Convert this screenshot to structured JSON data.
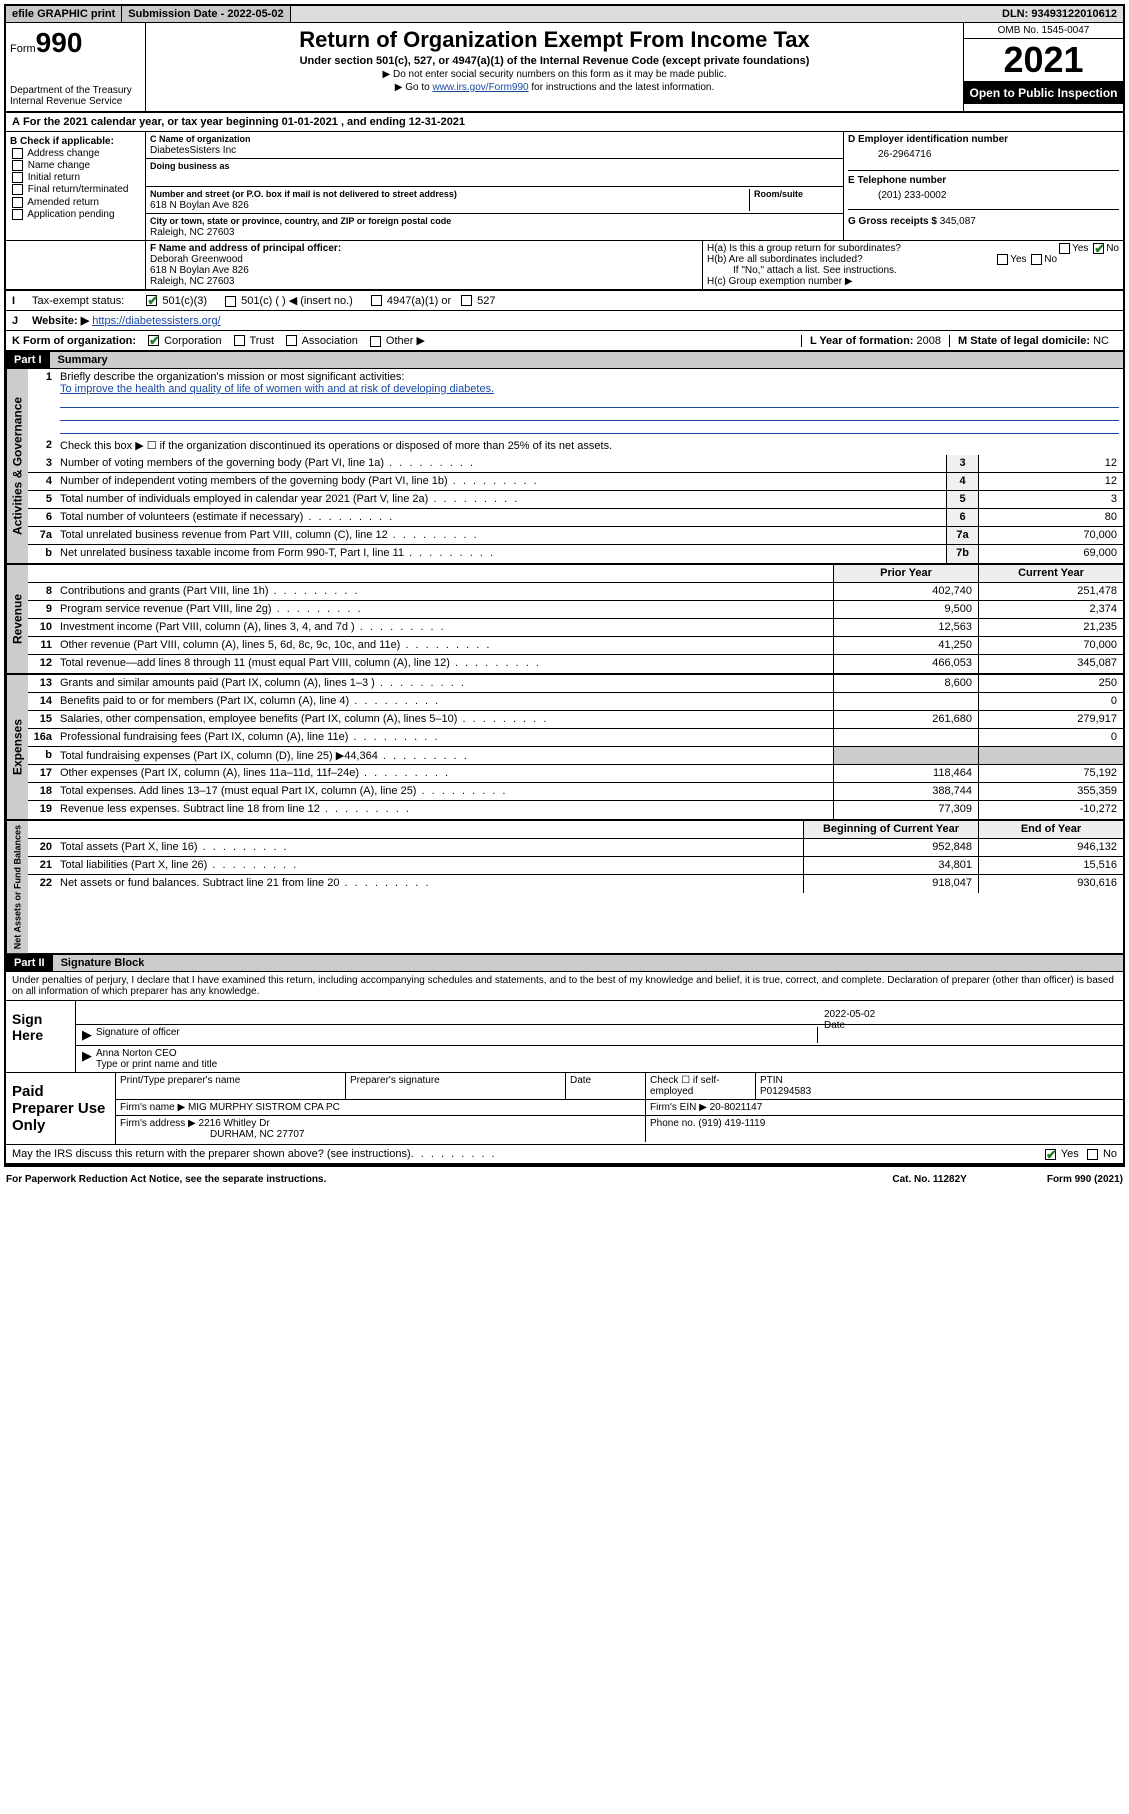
{
  "topbar": {
    "efile": "efile GRAPHIC print",
    "submission_label": "Submission Date - 2022-05-02",
    "dln": "DLN: 93493122010612"
  },
  "header": {
    "form_prefix": "Form",
    "form_number": "990",
    "dept": "Department of the Treasury\nInternal Revenue Service",
    "title": "Return of Organization Exempt From Income Tax",
    "subtitle": "Under section 501(c), 527, or 4947(a)(1) of the Internal Revenue Code (except private foundations)",
    "note1": "▶ Do not enter social security numbers on this form as it may be made public.",
    "note2_pre": "▶ Go to ",
    "note2_link": "www.irs.gov/Form990",
    "note2_post": " for instructions and the latest information.",
    "omb": "OMB No. 1545-0047",
    "year": "2021",
    "inspect": "Open to Public Inspection"
  },
  "taxyear": "For the 2021 calendar year, or tax year beginning 01-01-2021   , and ending 12-31-2021",
  "blockB": {
    "label": "B Check if applicable:",
    "opts": [
      "Address change",
      "Name change",
      "Initial return",
      "Final return/terminated",
      "Amended return",
      "Application pending"
    ]
  },
  "blockC": {
    "name_lbl": "C Name of organization",
    "name": "DiabetesSisters Inc",
    "dba_lbl": "Doing business as",
    "dba": "",
    "addr_lbl": "Number and street (or P.O. box if mail is not delivered to street address)",
    "room_lbl": "Room/suite",
    "addr": "618 N Boylan Ave 826",
    "city_lbl": "City or town, state or province, country, and ZIP or foreign postal code",
    "city": "Raleigh, NC  27603"
  },
  "blockD": {
    "lbl": "D Employer identification number",
    "val": "26-2964716"
  },
  "blockE": {
    "lbl": "E Telephone number",
    "val": "(201) 233-0002"
  },
  "blockG": {
    "lbl": "G Gross receipts $",
    "val": "345,087"
  },
  "blockF": {
    "lbl": "F  Name and address of principal officer:",
    "name": "Deborah Greenwood",
    "addr1": "618 N Boylan Ave 826",
    "addr2": "Raleigh, NC  27603"
  },
  "blockH": {
    "a": "H(a)  Is this a group return for subordinates?",
    "b": "H(b)  Are all subordinates included?",
    "note": "If \"No,\" attach a list. See instructions.",
    "c": "H(c)  Group exemption number ▶"
  },
  "rowI": {
    "lbl": "Tax-exempt status:",
    "opts": [
      "501(c)(3)",
      "501(c) (  ) ◀ (insert no.)",
      "4947(a)(1) or",
      "527"
    ]
  },
  "rowJ": {
    "lbl": "Website: ▶",
    "val": "https://diabetessisters.org/"
  },
  "rowK": {
    "lbl": "K Form of organization:",
    "opts": [
      "Corporation",
      "Trust",
      "Association",
      "Other ▶"
    ]
  },
  "rowL": {
    "lbl": "L Year of formation:",
    "val": "2008"
  },
  "rowM": {
    "lbl": "M State of legal domicile:",
    "val": "NC"
  },
  "part1": {
    "hdr": "Part I",
    "title": "Summary"
  },
  "summary": {
    "l1_lbl": "Briefly describe the organization's mission or most significant activities:",
    "l1_val": "To improve the health and quality of life of women with and at risk of developing diabetes.",
    "l2": "Check this box ▶ ☐  if the organization discontinued its operations or disposed of more than 25% of its net assets.",
    "rows_ag": [
      {
        "n": "3",
        "t": "Number of voting members of the governing body (Part VI, line 1a)",
        "b": "3",
        "v": "12"
      },
      {
        "n": "4",
        "t": "Number of independent voting members of the governing body (Part VI, line 1b)",
        "b": "4",
        "v": "12"
      },
      {
        "n": "5",
        "t": "Total number of individuals employed in calendar year 2021 (Part V, line 2a)",
        "b": "5",
        "v": "3"
      },
      {
        "n": "6",
        "t": "Total number of volunteers (estimate if necessary)",
        "b": "6",
        "v": "80"
      },
      {
        "n": "7a",
        "t": "Total unrelated business revenue from Part VIII, column (C), line 12",
        "b": "7a",
        "v": "70,000"
      },
      {
        "n": "b",
        "t": "Net unrelated business taxable income from Form 990-T, Part I, line 11",
        "b": "7b",
        "v": "69,000"
      }
    ],
    "col_hdr_prior": "Prior Year",
    "col_hdr_curr": "Current Year",
    "rev": [
      {
        "n": "8",
        "t": "Contributions and grants (Part VIII, line 1h)",
        "p": "402,740",
        "c": "251,478"
      },
      {
        "n": "9",
        "t": "Program service revenue (Part VIII, line 2g)",
        "p": "9,500",
        "c": "2,374"
      },
      {
        "n": "10",
        "t": "Investment income (Part VIII, column (A), lines 3, 4, and 7d )",
        "p": "12,563",
        "c": "21,235"
      },
      {
        "n": "11",
        "t": "Other revenue (Part VIII, column (A), lines 5, 6d, 8c, 9c, 10c, and 11e)",
        "p": "41,250",
        "c": "70,000"
      },
      {
        "n": "12",
        "t": "Total revenue—add lines 8 through 11 (must equal Part VIII, column (A), line 12)",
        "p": "466,053",
        "c": "345,087"
      }
    ],
    "exp": [
      {
        "n": "13",
        "t": "Grants and similar amounts paid (Part IX, column (A), lines 1–3 )",
        "p": "8,600",
        "c": "250"
      },
      {
        "n": "14",
        "t": "Benefits paid to or for members (Part IX, column (A), line 4)",
        "p": "",
        "c": "0"
      },
      {
        "n": "15",
        "t": "Salaries, other compensation, employee benefits (Part IX, column (A), lines 5–10)",
        "p": "261,680",
        "c": "279,917"
      },
      {
        "n": "16a",
        "t": "Professional fundraising fees (Part IX, column (A), line 11e)",
        "p": "",
        "c": "0"
      },
      {
        "n": "b",
        "t": "Total fundraising expenses (Part IX, column (D), line 25) ▶44,364",
        "p": "shade",
        "c": "shade"
      },
      {
        "n": "17",
        "t": "Other expenses (Part IX, column (A), lines 11a–11d, 11f–24e)",
        "p": "118,464",
        "c": "75,192"
      },
      {
        "n": "18",
        "t": "Total expenses. Add lines 13–17 (must equal Part IX, column (A), line 25)",
        "p": "388,744",
        "c": "355,359"
      },
      {
        "n": "19",
        "t": "Revenue less expenses. Subtract line 18 from line 12",
        "p": "77,309",
        "c": "-10,272"
      }
    ],
    "na_hdr_beg": "Beginning of Current Year",
    "na_hdr_end": "End of Year",
    "na": [
      {
        "n": "20",
        "t": "Total assets (Part X, line 16)",
        "p": "952,848",
        "c": "946,132"
      },
      {
        "n": "21",
        "t": "Total liabilities (Part X, line 26)",
        "p": "34,801",
        "c": "15,516"
      },
      {
        "n": "22",
        "t": "Net assets or fund balances. Subtract line 21 from line 20",
        "p": "918,047",
        "c": "930,616"
      }
    ]
  },
  "vtabs": {
    "ag": "Activities & Governance",
    "rev": "Revenue",
    "exp": "Expenses",
    "na": "Net Assets or Fund Balances"
  },
  "part2": {
    "hdr": "Part II",
    "title": "Signature Block"
  },
  "sig": {
    "pen": "Under penalties of perjury, I declare that I have examined this return, including accompanying schedules and statements, and to the best of my knowledge and belief, it is true, correct, and complete. Declaration of preparer (other than officer) is based on all information of which preparer has any knowledge.",
    "here": "Sign Here",
    "sig_officer": "Signature of officer",
    "date_lbl": "Date",
    "date": "2022-05-02",
    "name": "Anna Norton CEO",
    "name_lbl": "Type or print name and title"
  },
  "prep": {
    "left": "Paid Preparer Use Only",
    "h1": "Print/Type preparer's name",
    "h2": "Preparer's signature",
    "h3": "Date",
    "h4_chk": "Check ☐ if self-employed",
    "h5": "PTIN",
    "ptin": "P01294583",
    "firm_lbl": "Firm's name   ▶",
    "firm": "MIG MURPHY SISTROM CPA PC",
    "ein_lbl": "Firm's EIN ▶",
    "ein": "20-8021147",
    "addr_lbl": "Firm's address ▶",
    "addr1": "2216 Whitley Dr",
    "addr2": "DURHAM, NC  27707",
    "phone_lbl": "Phone no.",
    "phone": "(919) 419-1119"
  },
  "discuss": "May the IRS discuss this return with the preparer shown above? (see instructions)",
  "footer": {
    "l": "For Paperwork Reduction Act Notice, see the separate instructions.",
    "m": "Cat. No. 11282Y",
    "r": "Form 990 (2021)"
  },
  "yes": "Yes",
  "no": "No"
}
